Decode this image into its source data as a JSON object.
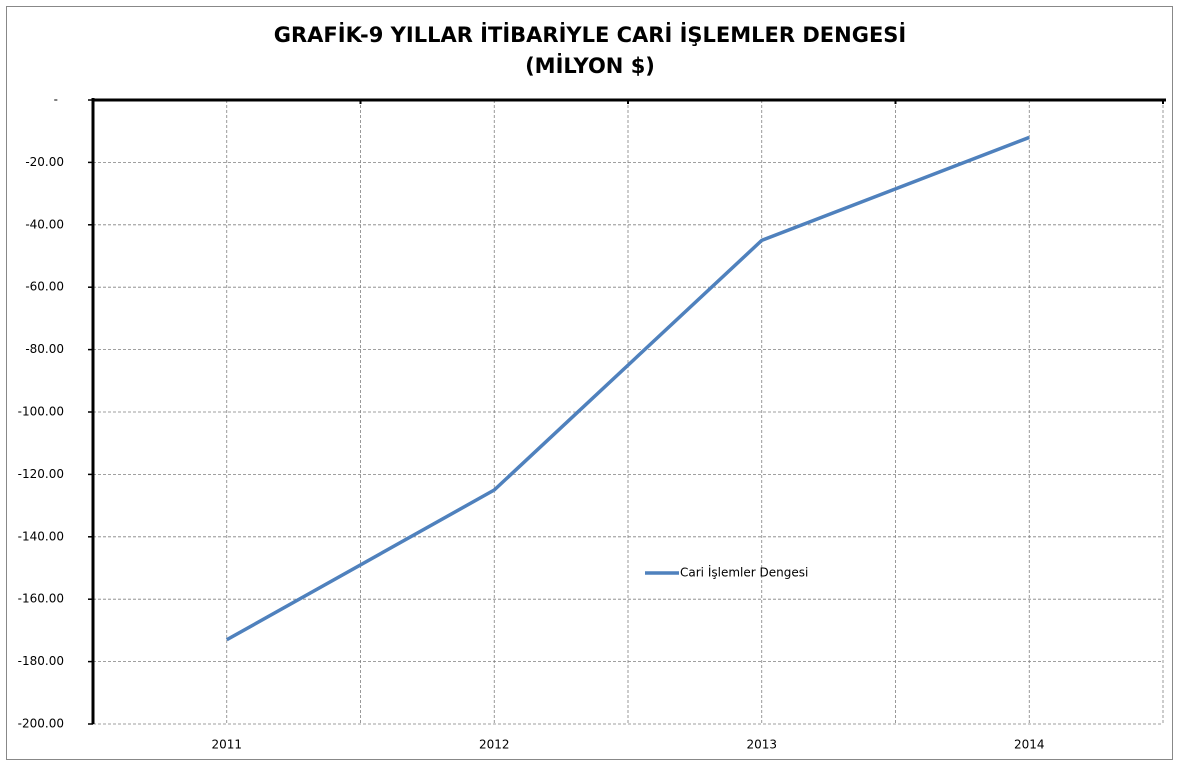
{
  "chart_data": {
    "type": "line",
    "title": "GRAFİK-9 YILLAR İTİBARİYLE CARİ İŞLEMLER DENGESİ",
    "subtitle": "(MİLYON $)",
    "categories": [
      "2011",
      "2012",
      "2013",
      "2014"
    ],
    "series": [
      {
        "name": "Cari İşlemler Dengesi",
        "color": "#4f81bd",
        "values": [
          -173,
          -125,
          -45,
          -12
        ]
      }
    ],
    "ylim": [
      -200,
      0
    ],
    "yticks": [
      {
        "value": 0,
        "label": "-"
      },
      {
        "value": -20,
        "label": "-20.00"
      },
      {
        "value": -40,
        "label": "-40.00"
      },
      {
        "value": -60,
        "label": "-60.00"
      },
      {
        "value": -80,
        "label": "-80.00"
      },
      {
        "value": -100,
        "label": "-100.00"
      },
      {
        "value": -120,
        "label": "-120.00"
      },
      {
        "value": -140,
        "label": "-140.00"
      },
      {
        "value": -160,
        "label": "-160.00"
      },
      {
        "value": -180,
        "label": "-180.00"
      },
      {
        "value": -200,
        "label": "-200.00"
      }
    ],
    "grid": true,
    "legend": "center"
  }
}
